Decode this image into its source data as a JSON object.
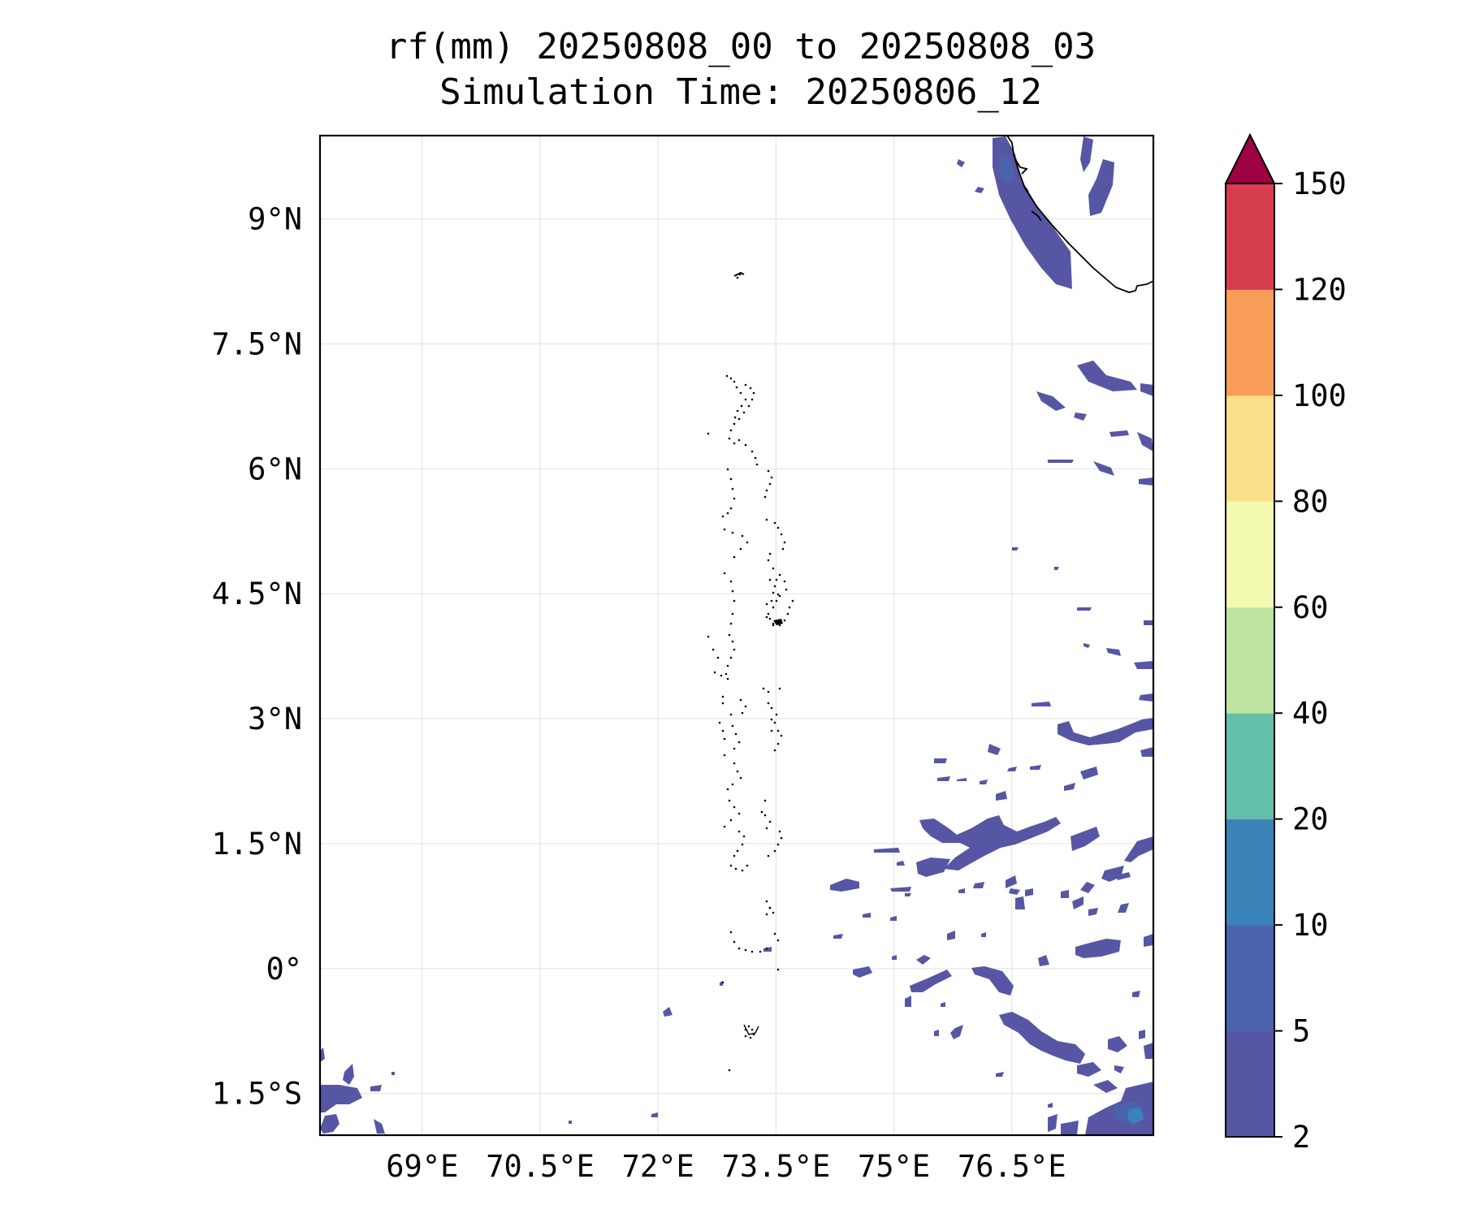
{
  "title": {
    "line1": "rf(mm) 20250808_00 to 20250808_03",
    "line2": "Simulation Time: 20250806_12"
  },
  "map": {
    "lon_range": [
      67.7,
      78.3
    ],
    "lat_range": [
      -2.0,
      10.0
    ],
    "x_ticks": [
      {
        "value": 69.0,
        "label": "69°E"
      },
      {
        "value": 70.5,
        "label": "70.5°E"
      },
      {
        "value": 72.0,
        "label": "72°E"
      },
      {
        "value": 73.5,
        "label": "73.5°E"
      },
      {
        "value": 75.0,
        "label": "75°E"
      },
      {
        "value": 76.5,
        "label": "76.5°E"
      }
    ],
    "y_ticks": [
      {
        "value": 9.0,
        "label": "9°N"
      },
      {
        "value": 7.5,
        "label": "7.5°N"
      },
      {
        "value": 6.0,
        "label": "6°N"
      },
      {
        "value": 4.5,
        "label": "4.5°N"
      },
      {
        "value": 3.0,
        "label": "3°N"
      },
      {
        "value": 1.5,
        "label": "1.5°N"
      },
      {
        "value": 0.0,
        "label": "0°"
      },
      {
        "value": -1.5,
        "label": "1.5°S"
      }
    ],
    "grid": true,
    "coastline": "southern tip of India (Kerala coast), top-right",
    "islands": "Maldives atoll chain near 73°E–73.5°E"
  },
  "colorbar": {
    "levels": [
      "2",
      "5",
      "10",
      "20",
      "40",
      "60",
      "80",
      "100",
      "120",
      "150"
    ],
    "colors": [
      "#5756a5",
      "#4b63ad",
      "#3b82b9",
      "#64bfaa",
      "#bde4a1",
      "#f3fab0",
      "#fbe08a",
      "#f99c57",
      "#d63e4f"
    ],
    "extend_color": "#9e0142",
    "extend": "max",
    "position": "right"
  }
}
